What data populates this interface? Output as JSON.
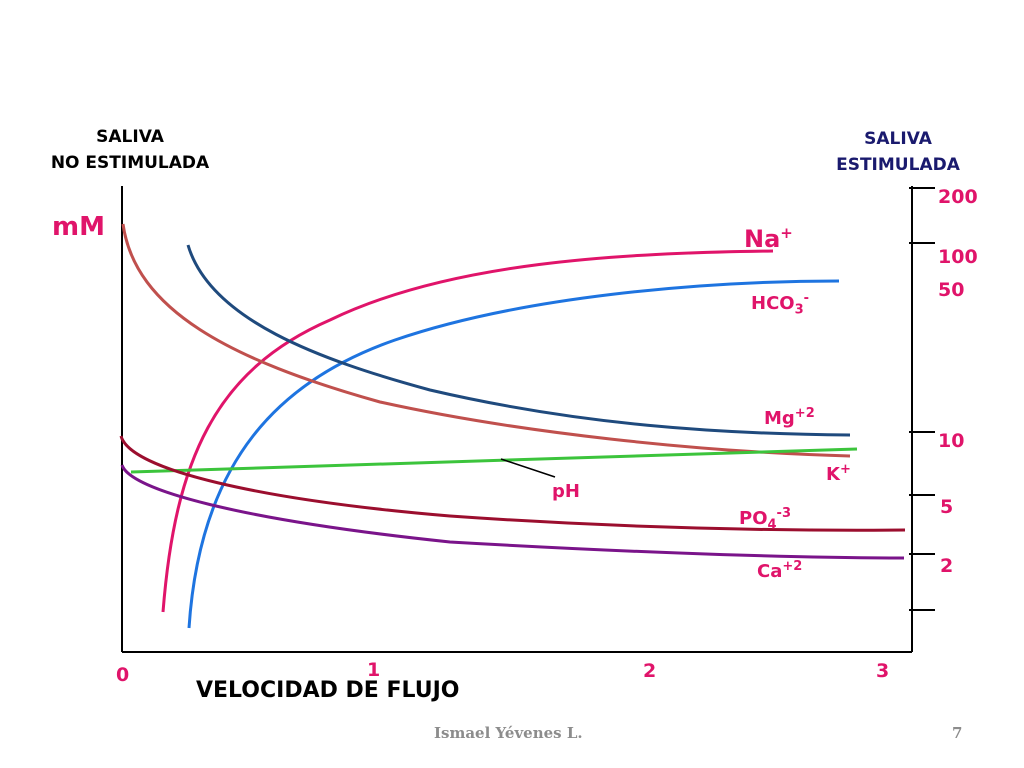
{
  "header_left": {
    "line1": "SALIVA",
    "line2": "NO ESTIMULADA"
  },
  "header_right": {
    "line1": "SALIVA",
    "line2": "ESTIMULADA"
  },
  "y_unit": "mM",
  "right_ticks": [
    "200",
    "100",
    "50",
    "10",
    "5",
    "2"
  ],
  "x_ticks": [
    "0",
    "1",
    "2",
    "3"
  ],
  "x_axis_label": "VELOCIDAD DE FLUJO",
  "ion_labels": {
    "na": {
      "base": "Na",
      "sup": "+"
    },
    "hco3": {
      "base": "HCO",
      "sub": "3",
      "sup": "-"
    },
    "mg": {
      "base": "Mg",
      "sup": "+2"
    },
    "k": {
      "base": "K",
      "sup": "+"
    },
    "ph": {
      "base": "pH"
    },
    "po4": {
      "base": "PO",
      "sub": "4",
      "sup": "-3"
    },
    "ca": {
      "base": "Ca",
      "sup": "+2"
    }
  },
  "footer": {
    "author": "Ismael Yévenes L.",
    "page": "7"
  },
  "colors": {
    "na": "#e0146a",
    "hco3": "#1e74e0",
    "mg": "#1f4a7d",
    "k": "#c0504d",
    "ph": "#3cc43c",
    "po4": "#9b0e2e",
    "ca": "#7a148a",
    "label_magenta": "#e0146a",
    "header_navy": "#1a1a6e"
  },
  "chart_data": {
    "type": "line",
    "xlabel": "VELOCIDAD DE FLUJO",
    "ylabel": "mM",
    "xlim": [
      0,
      3
    ],
    "y_scale": "log",
    "right_axis_ticks": [
      200,
      100,
      50,
      10,
      5,
      2
    ],
    "x_ticks": [
      0,
      1,
      2,
      3
    ],
    "grid": false,
    "series": [
      {
        "name": "Na+",
        "x": [
          0.16,
          0.25,
          0.4,
          0.6,
          0.8,
          1.0,
          1.3,
          1.6,
          2.0,
          2.3,
          2.48
        ],
        "y": [
          1.4,
          3.5,
          8,
          18,
          32,
          50,
          70,
          85,
          100,
          105,
          107
        ]
      },
      {
        "name": "HCO3-",
        "x": [
          0.25,
          0.35,
          0.5,
          0.7,
          0.9,
          1.1,
          1.4,
          1.7,
          2.0,
          2.4,
          2.72
        ],
        "y": [
          1.3,
          2.6,
          5,
          9.5,
          17,
          27,
          42,
          55,
          64,
          69,
          70
        ]
      },
      {
        "name": "Mg+2",
        "x": [
          0.25,
          0.4,
          0.6,
          0.8,
          1.0,
          1.3,
          1.6,
          2.0,
          2.4,
          2.76
        ],
        "y": [
          110,
          55,
          34,
          26,
          21,
          16.5,
          13.5,
          11.5,
          10.3,
          10
        ]
      },
      {
        "name": "K+",
        "x": [
          0.0,
          0.1,
          0.3,
          0.5,
          0.8,
          1.1,
          1.5,
          2.0,
          2.5,
          2.76
        ],
        "y": [
          160,
          70,
          40,
          29,
          21,
          15.5,
          11.5,
          9.5,
          8.5,
          8.2
        ]
      },
      {
        "name": "pH",
        "x": [
          0.04,
          2.78
        ],
        "y": [
          7.4,
          9.0
        ]
      },
      {
        "name": "PO4-3",
        "x": [
          0.0,
          0.2,
          0.5,
          0.9,
          1.3,
          1.8,
          2.3,
          2.76
        ],
        "y": [
          10,
          7.0,
          5.5,
          4.6,
          4.1,
          3.8,
          3.6,
          3.5
        ]
      },
      {
        "name": "Ca+2",
        "x": [
          0.0,
          0.2,
          0.5,
          0.9,
          1.3,
          1.8,
          2.3,
          2.76
        ],
        "y": [
          7.5,
          4.7,
          3.6,
          3.0,
          2.7,
          2.5,
          2.4,
          2.35
        ]
      }
    ]
  }
}
